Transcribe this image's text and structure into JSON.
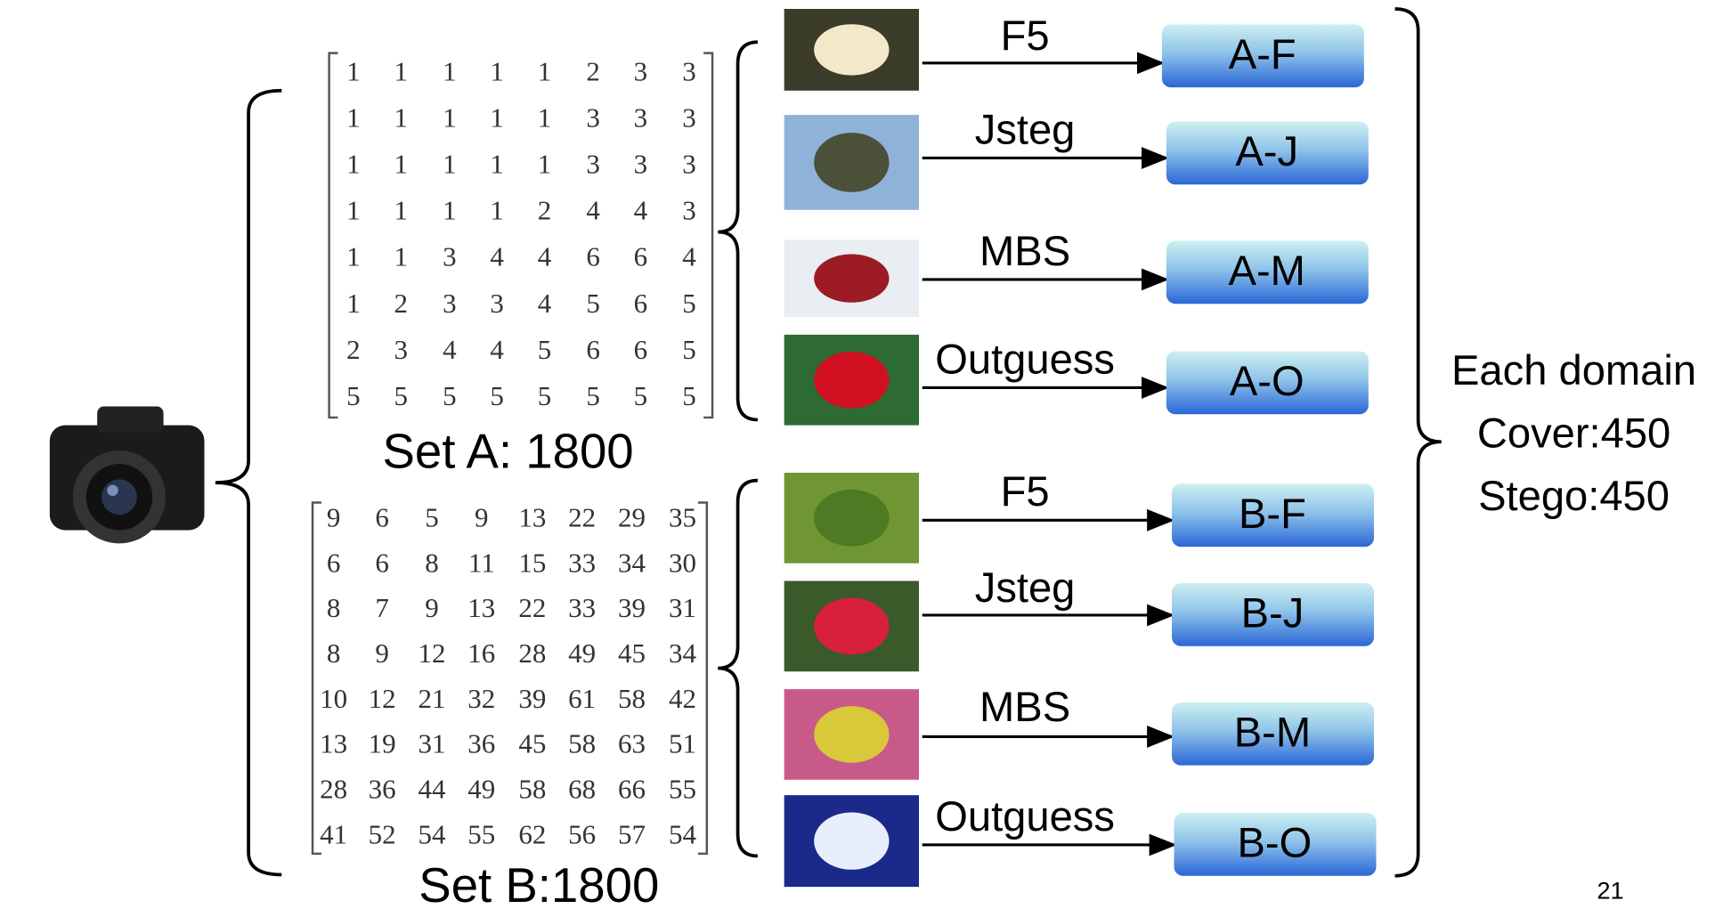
{
  "sets": [
    {
      "label": "Set A: 1800",
      "matrix": [
        [
          1,
          1,
          1,
          1,
          1,
          2,
          3,
          3
        ],
        [
          1,
          1,
          1,
          1,
          1,
          3,
          3,
          3
        ],
        [
          1,
          1,
          1,
          1,
          1,
          3,
          3,
          3
        ],
        [
          1,
          1,
          1,
          1,
          2,
          4,
          4,
          3
        ],
        [
          1,
          1,
          3,
          4,
          4,
          6,
          6,
          4
        ],
        [
          1,
          2,
          3,
          3,
          4,
          5,
          6,
          5
        ],
        [
          2,
          3,
          4,
          4,
          5,
          6,
          6,
          5
        ],
        [
          5,
          5,
          5,
          5,
          5,
          5,
          5,
          5
        ]
      ],
      "rows": [
        {
          "method": "F5",
          "output": "A-F"
        },
        {
          "method": "Jsteg",
          "output": "A-J"
        },
        {
          "method": "MBS",
          "output": "A-M"
        },
        {
          "method": "Outguess",
          "output": "A-O"
        }
      ]
    },
    {
      "label": "Set B:1800",
      "matrix": [
        [
          9,
          6,
          5,
          9,
          13,
          22,
          29,
          35
        ],
        [
          6,
          6,
          8,
          11,
          15,
          33,
          34,
          30
        ],
        [
          8,
          7,
          9,
          13,
          22,
          33,
          39,
          31
        ],
        [
          8,
          9,
          12,
          16,
          28,
          49,
          45,
          34
        ],
        [
          10,
          12,
          21,
          32,
          39,
          61,
          58,
          42
        ],
        [
          13,
          19,
          31,
          36,
          45,
          58,
          63,
          51
        ],
        [
          28,
          36,
          44,
          49,
          58,
          68,
          66,
          55
        ],
        [
          41,
          52,
          54,
          55,
          62,
          56,
          57,
          54
        ]
      ],
      "rows": [
        {
          "method": "F5",
          "output": "B-F"
        },
        {
          "method": "Jsteg",
          "output": "B-J"
        },
        {
          "method": "MBS",
          "output": "B-M"
        },
        {
          "method": "Outguess",
          "output": "B-O"
        }
      ]
    }
  ],
  "summary": [
    "Each domain",
    "Cover:450",
    "Stego:450"
  ],
  "page_number": "21"
}
